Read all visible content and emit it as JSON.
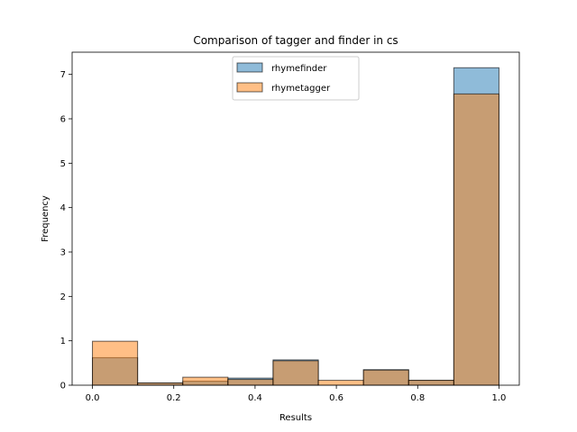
{
  "chart_data": {
    "type": "bar",
    "subtype": "overlapping-histogram",
    "title": "Comparison of tagger and finder in cs",
    "xlabel": "Results",
    "ylabel": "Frequency",
    "xlim": [
      -0.05,
      1.05
    ],
    "ylim": [
      0,
      7.5
    ],
    "xticks": [
      0.0,
      0.2,
      0.4,
      0.6,
      0.8,
      1.0
    ],
    "xtick_labels": [
      "0.0",
      "0.2",
      "0.4",
      "0.6",
      "0.8",
      "1.0"
    ],
    "yticks": [
      0,
      1,
      2,
      3,
      4,
      5,
      6,
      7
    ],
    "ytick_labels": [
      "0",
      "1",
      "2",
      "3",
      "4",
      "5",
      "6",
      "7"
    ],
    "bin_edges": [
      0.0,
      0.1111,
      0.2222,
      0.3333,
      0.4444,
      0.5556,
      0.6667,
      0.7778,
      0.8889,
      1.0
    ],
    "series": [
      {
        "name": "rhymefinder",
        "color": "#1f77b4",
        "values": [
          0.62,
          0.05,
          0.09,
          0.16,
          0.57,
          0.0,
          0.35,
          0.11,
          7.15
        ]
      },
      {
        "name": "rhymetagger",
        "color": "#ff7f0e",
        "values": [
          0.99,
          0.05,
          0.18,
          0.13,
          0.55,
          0.11,
          0.34,
          0.11,
          6.56
        ]
      }
    ],
    "legend_position": "top-center",
    "grid": false
  }
}
